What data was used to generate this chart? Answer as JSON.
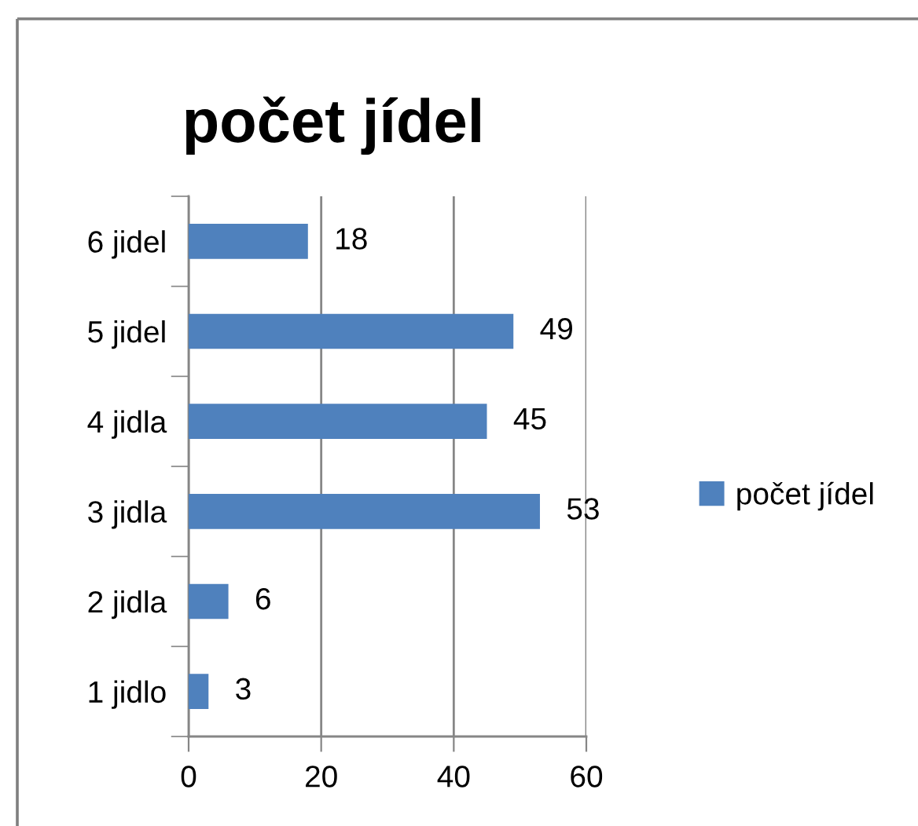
{
  "chart_data": {
    "type": "bar",
    "orientation": "horizontal",
    "title": "počet jídel",
    "categories": [
      "6 jidel",
      "5 jidel",
      "4 jidla",
      "3 jidla",
      "2 jidla",
      "1 jidlo"
    ],
    "series": [
      {
        "name": "počet jídel",
        "color": "#4f81bd",
        "values": [
          18,
          49,
          45,
          53,
          6,
          3
        ]
      }
    ],
    "xlim": [
      0,
      60
    ],
    "xticks": [
      0,
      20,
      40,
      60
    ],
    "grid": "x",
    "legend": "right",
    "data_labels": true
  }
}
